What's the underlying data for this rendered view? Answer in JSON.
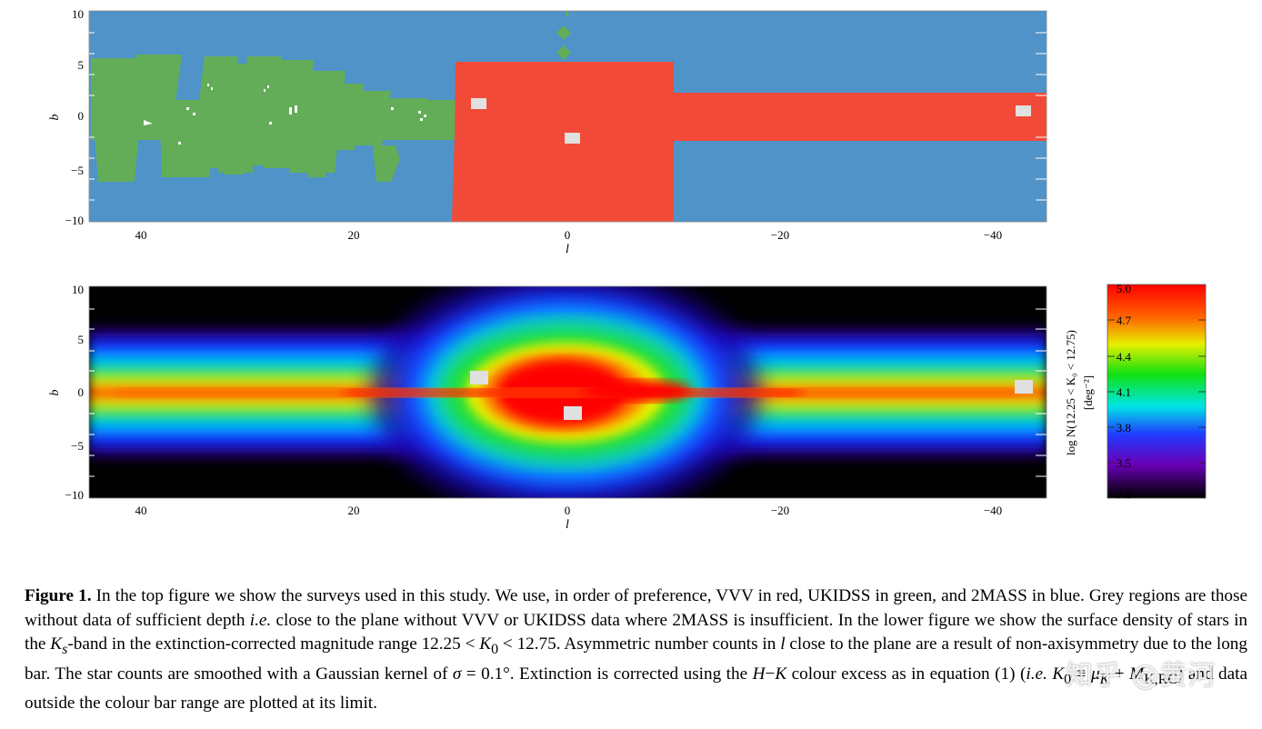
{
  "figure": {
    "top_panel": {
      "ylabel": "b",
      "xlabel": "l",
      "x_ticks": [
        "40",
        "20",
        "0",
        "−20",
        "−40"
      ],
      "y_ticks": [
        "10",
        "5",
        "0",
        "−5",
        "−10"
      ],
      "colors": {
        "vvv": "#f24a38",
        "ukidss": "#63ad58",
        "twomass": "#4f93c8",
        "grey": "#e0e0e0"
      }
    },
    "bottom_panel": {
      "ylabel": "b",
      "xlabel": "l",
      "x_ticks": [
        "40",
        "20",
        "0",
        "−20",
        "−40"
      ],
      "y_ticks": [
        "10",
        "5",
        "0",
        "−5",
        "−10"
      ]
    },
    "colorbar": {
      "label": "log N(12.25 < K₀ < 12.75)",
      "units": "[deg⁻²]",
      "ticks": [
        "5.0",
        "4.7",
        "4.4",
        "4.1",
        "3.8",
        "3.5",
        "3.2"
      ],
      "range": [
        3.2,
        5.0
      ]
    }
  },
  "caption": {
    "lead": "Figure 1.",
    "p1": " In the top figure we show the surveys used in this study. We use, in order of preference, VVV in red, UKIDSS in green, and 2MASS in blue. Grey regions are those without data of sufficient depth ",
    "ie1": "i.e.",
    "p2": " close to the plane without VVV or UKIDSS data where 2MASS is insufficient. In the lower figure we show the surface density of stars in the ",
    "ks": "K",
    "ks_sub": "s",
    "p3": "-band in the extinction-corrected magnitude range 12.25 < ",
    "k0a": "K",
    "k0a_sub": "0",
    "p4": " < 12.75. Asymmetric number counts in ",
    "l": "l",
    "p5": " close to the plane are a result of non-axisymmetry due to the long bar. The star counts are smoothed with a Gaussian kernel of ",
    "sigma": "σ",
    "p6": " = 0.1°. Extinction is corrected using the ",
    "h": "H",
    "p7": "−",
    "k": "K",
    "p8": " colour excess as in equation (1) (",
    "ie2": "i.e.",
    "p9": " ",
    "k0b": "K",
    "k0b_sub": "0",
    "p10": " ≡ ",
    "mu": "μ",
    "mu_sub": "K",
    "p11": " + ",
    "m": "M",
    "m_sub": "K,RC",
    "p12": ") and data outside the colour bar range are plotted at its limit."
  },
  "watermark": "知乎 @黄河"
}
